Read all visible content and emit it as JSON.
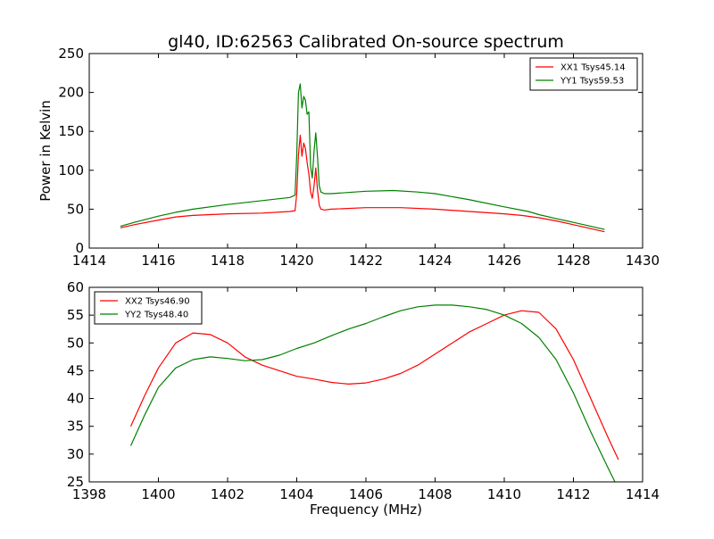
{
  "figure": {
    "title": "gl40, ID:62563 Calibrated On-source spectrum"
  },
  "chart_data": [
    {
      "type": "line",
      "ylabel": "Power in Kelvin",
      "xlabel": "",
      "xlim": [
        1414,
        1430
      ],
      "ylim": [
        0,
        250
      ],
      "xticks": [
        1414,
        1416,
        1418,
        1420,
        1422,
        1424,
        1426,
        1428,
        1430
      ],
      "yticks": [
        0,
        50,
        100,
        150,
        200,
        250
      ],
      "legend_position": "top-right",
      "series": [
        {
          "name": "XX1 Tsys45.14",
          "color": "#ff0000",
          "x": [
            1414.9,
            1415.3,
            1416.0,
            1416.5,
            1417.0,
            1418.0,
            1419.0,
            1419.8,
            1419.95,
            1420.0,
            1420.05,
            1420.1,
            1420.15,
            1420.2,
            1420.25,
            1420.3,
            1420.35,
            1420.4,
            1420.45,
            1420.5,
            1420.55,
            1420.6,
            1420.65,
            1420.7,
            1420.8,
            1421.0,
            1422.0,
            1423.0,
            1424.0,
            1425.0,
            1426.0,
            1426.5,
            1427.0,
            1427.5,
            1428.0,
            1428.5,
            1428.9
          ],
          "values": [
            26,
            30,
            36,
            40,
            42,
            44,
            45,
            47,
            48,
            70,
            120,
            145,
            118,
            135,
            128,
            110,
            95,
            72,
            64,
            80,
            103,
            75,
            55,
            50,
            49,
            50,
            52,
            52,
            50,
            47,
            44,
            42,
            39,
            35,
            30,
            25,
            21
          ]
        },
        {
          "name": "YY1 Tsys59.53",
          "color": "#008000",
          "x": [
            1414.9,
            1415.3,
            1416.0,
            1416.5,
            1417.0,
            1418.0,
            1419.0,
            1419.8,
            1419.95,
            1420.0,
            1420.05,
            1420.1,
            1420.15,
            1420.2,
            1420.25,
            1420.3,
            1420.35,
            1420.4,
            1420.45,
            1420.5,
            1420.55,
            1420.6,
            1420.65,
            1420.7,
            1420.8,
            1421.0,
            1422.0,
            1422.8,
            1423.5,
            1424.0,
            1425.0,
            1426.0,
            1426.7,
            1427.0,
            1427.5,
            1428.0,
            1428.5,
            1428.9
          ],
          "values": [
            28,
            33,
            41,
            46,
            50,
            56,
            61,
            65,
            68,
            120,
            200,
            211,
            180,
            195,
            190,
            172,
            175,
            105,
            90,
            125,
            148,
            118,
            80,
            72,
            70,
            70,
            73,
            74,
            72,
            70,
            62,
            53,
            47,
            43,
            38,
            33,
            28,
            24
          ]
        }
      ]
    },
    {
      "type": "line",
      "ylabel": "",
      "xlabel": "Frequency (MHz)",
      "xlim": [
        1398,
        1414
      ],
      "ylim": [
        25,
        60
      ],
      "xticks": [
        1398,
        1400,
        1402,
        1404,
        1406,
        1408,
        1410,
        1412,
        1414
      ],
      "yticks": [
        25,
        30,
        35,
        40,
        45,
        50,
        55,
        60
      ],
      "legend_position": "top-left",
      "series": [
        {
          "name": "XX2 Tsys46.90",
          "color": "#ff0000",
          "x": [
            1399.2,
            1399.6,
            1400.0,
            1400.5,
            1401.0,
            1401.5,
            1402.0,
            1402.5,
            1403.0,
            1403.5,
            1404.0,
            1404.5,
            1405.0,
            1405.5,
            1406.0,
            1406.5,
            1407.0,
            1407.5,
            1408.0,
            1408.5,
            1409.0,
            1409.5,
            1410.0,
            1410.5,
            1411.0,
            1411.5,
            1412.0,
            1412.5,
            1413.0,
            1413.3
          ],
          "values": [
            35,
            40.5,
            45.5,
            50,
            51.8,
            51.5,
            50,
            47.5,
            46,
            45,
            44,
            43.5,
            42.9,
            42.6,
            42.8,
            43.5,
            44.5,
            46,
            48,
            50,
            52,
            53.5,
            55,
            55.8,
            55.5,
            52.5,
            47,
            40,
            33,
            29
          ]
        },
        {
          "name": "YY2 Tsys48.40",
          "color": "#008000",
          "x": [
            1399.2,
            1399.6,
            1400.0,
            1400.5,
            1401.0,
            1401.5,
            1402.0,
            1402.5,
            1403.0,
            1403.5,
            1404.0,
            1404.5,
            1405.0,
            1405.5,
            1406.0,
            1406.5,
            1407.0,
            1407.5,
            1408.0,
            1408.5,
            1409.0,
            1409.5,
            1410.0,
            1410.5,
            1411.0,
            1411.5,
            1412.0,
            1412.5,
            1413.0,
            1413.2
          ],
          "values": [
            31.5,
            37,
            42,
            45.5,
            47,
            47.5,
            47.2,
            46.8,
            47,
            47.8,
            49,
            50,
            51.3,
            52.5,
            53.5,
            54.7,
            55.8,
            56.5,
            56.8,
            56.8,
            56.5,
            56,
            55,
            53.5,
            51,
            47,
            41,
            34,
            27.5,
            25
          ]
        }
      ]
    }
  ]
}
